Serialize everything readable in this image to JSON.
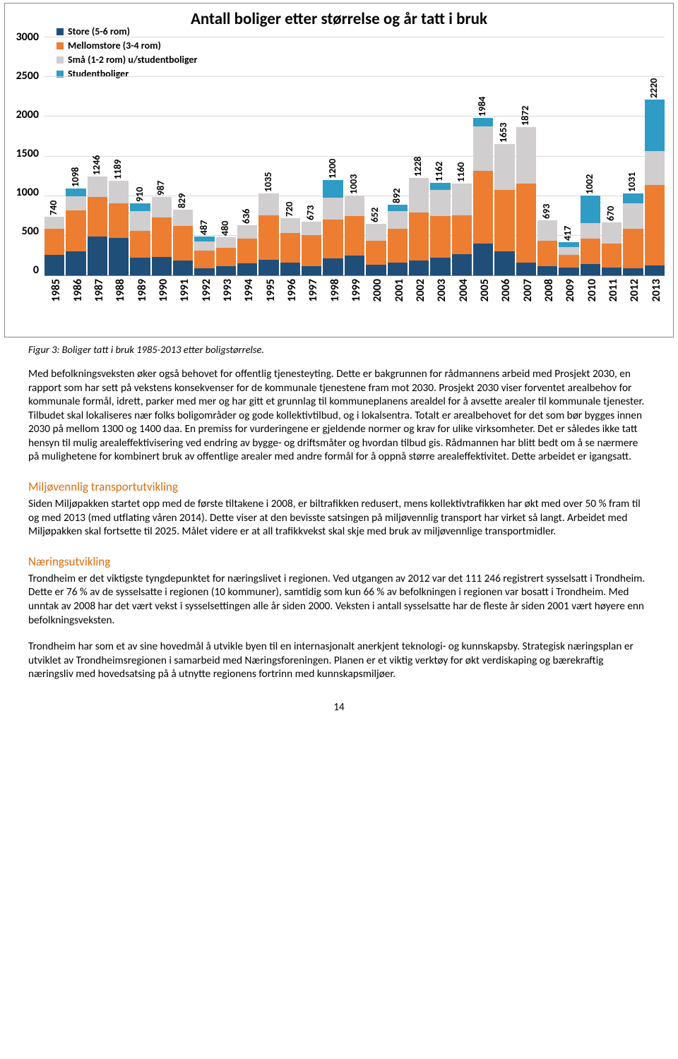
{
  "chart": {
    "title": "Antall boliger etter størrelse og år tatt i bruk",
    "type": "stacked-bar",
    "ymax": 3000,
    "ytick_step": 500,
    "yticks": [
      "3000",
      "2500",
      "2000",
      "1500",
      "1000",
      "500",
      "0"
    ],
    "series": [
      {
        "key": "store",
        "label": "Store (5-6 rom)",
        "color": "#1f4e79"
      },
      {
        "key": "mellom",
        "label": "Mellomstore (3-4 rom)",
        "color": "#ed7d31"
      },
      {
        "key": "sma",
        "label": "Små (1-2 rom) u/studentboliger",
        "color": "#d0cece"
      },
      {
        "key": "student",
        "label": "Studentboliger",
        "color": "#2e9cc4"
      }
    ],
    "years": [
      "1985",
      "1986",
      "1987",
      "1988",
      "1989",
      "1990",
      "1991",
      "1992",
      "1993",
      "1994",
      "1995",
      "1996",
      "1997",
      "1998",
      "1999",
      "2000",
      "2001",
      "2002",
      "2003",
      "2004",
      "2005",
      "2006",
      "2007",
      "2008",
      "2009",
      "2010",
      "2011",
      "2012",
      "2013"
    ],
    "totals": [
      740,
      1098,
      1246,
      1189,
      910,
      987,
      829,
      487,
      480,
      636,
      1035,
      720,
      673,
      1200,
      1003,
      652,
      892,
      1228,
      1162,
      1160,
      1984,
      1653,
      1872,
      693,
      417,
      1002,
      670,
      1031,
      2220
    ],
    "stacks": [
      {
        "store": 260,
        "mellom": 330,
        "sma": 150,
        "student": 0
      },
      {
        "store": 300,
        "mellom": 520,
        "sma": 180,
        "student": 98
      },
      {
        "store": 490,
        "mellom": 500,
        "sma": 256,
        "student": 0
      },
      {
        "store": 470,
        "mellom": 440,
        "sma": 279,
        "student": 0
      },
      {
        "store": 220,
        "mellom": 340,
        "sma": 250,
        "student": 100
      },
      {
        "store": 230,
        "mellom": 500,
        "sma": 257,
        "student": 0
      },
      {
        "store": 190,
        "mellom": 430,
        "sma": 209,
        "student": 0
      },
      {
        "store": 85,
        "mellom": 230,
        "sma": 110,
        "student": 62
      },
      {
        "store": 120,
        "mellom": 230,
        "sma": 130,
        "student": 0
      },
      {
        "store": 150,
        "mellom": 310,
        "sma": 176,
        "student": 0
      },
      {
        "store": 200,
        "mellom": 560,
        "sma": 275,
        "student": 0
      },
      {
        "store": 160,
        "mellom": 370,
        "sma": 190,
        "student": 0
      },
      {
        "store": 120,
        "mellom": 390,
        "sma": 163,
        "student": 0
      },
      {
        "store": 210,
        "mellom": 490,
        "sma": 280,
        "student": 220
      },
      {
        "store": 250,
        "mellom": 500,
        "sma": 253,
        "student": 0
      },
      {
        "store": 130,
        "mellom": 310,
        "sma": 212,
        "student": 0
      },
      {
        "store": 160,
        "mellom": 430,
        "sma": 220,
        "student": 82
      },
      {
        "store": 190,
        "mellom": 600,
        "sma": 438,
        "student": 0
      },
      {
        "store": 220,
        "mellom": 530,
        "sma": 330,
        "student": 82
      },
      {
        "store": 270,
        "mellom": 490,
        "sma": 400,
        "student": 0
      },
      {
        "store": 400,
        "mellom": 920,
        "sma": 560,
        "student": 104
      },
      {
        "store": 300,
        "mellom": 780,
        "sma": 573,
        "student": 0
      },
      {
        "store": 160,
        "mellom": 1000,
        "sma": 712,
        "student": 0
      },
      {
        "store": 120,
        "mellom": 320,
        "sma": 253,
        "student": 0
      },
      {
        "store": 100,
        "mellom": 160,
        "sma": 100,
        "student": 57
      },
      {
        "store": 140,
        "mellom": 320,
        "sma": 200,
        "student": 342
      },
      {
        "store": 100,
        "mellom": 300,
        "sma": 270,
        "student": 0
      },
      {
        "store": 90,
        "mellom": 500,
        "sma": 320,
        "student": 121
      },
      {
        "store": 120,
        "mellom": 1020,
        "sma": 430,
        "student": 650
      }
    ],
    "grid_color": "#d9d9d9",
    "axis_color": "#7f7f7f",
    "label_fontsize": 16
  },
  "caption": "Figur 3: Boliger tatt i bruk 1985-2013 etter boligstørrelse.",
  "para1": "Med befolkningsveksten øker også behovet for offentlig tjenesteyting. Dette er bakgrunnen for rådmannens arbeid med Prosjekt 2030, en rapport som har sett på vekstens konsekvenser for de kommunale tjenestene fram mot 2030. Prosjekt 2030 viser forventet arealbehov for kommunale formål, idrett, parker med mer og har gitt et grunnlag til kommuneplanens arealdel for å avsette arealer til kommunale tjenester. Tilbudet skal lokaliseres nær folks boligområder og gode kollektivtilbud, og i lokalsentra. Totalt er arealbehovet for det som bør bygges innen 2030 på mellom 1300 og 1400 daa. En premiss for vurderingene er gjeldende normer og krav for ulike virksomheter. Det er således ikke tatt hensyn til mulig arealeffektivisering ved endring av bygge- og driftsmåter og hvordan tilbud gis. Rådmannen har blitt bedt om å se nærmere på mulighetene for kombinert bruk av offentlige arealer med andre formål for å oppnå større arealeffektivitet. Dette arbeidet er igangsatt.",
  "heading1": "Miljøvennlig transportutvikling",
  "para2": "Siden Miljøpakken startet opp med de første tiltakene i 2008, er biltrafikken redusert, mens kollektivtrafikken har økt med over 50 % fram til og med 2013 (med utflating våren 2014). Dette viser at den bevisste satsingen på miljøvennlig transport har virket så langt. Arbeidet med Miljøpakken skal fortsette til 2025. Målet videre er at all trafikkvekst skal skje med bruk av miljøvennlige transportmidler.",
  "heading2": "Næringsutvikling",
  "para3": "Trondheim er det viktigste tyngdepunktet for næringslivet i regionen. Ved utgangen av 2012 var det 111 246 registrert sysselsatt i Trondheim. Dette er 76 % av de sysselsatte i regionen (10 kommuner), samtidig som kun 66 % av befolkningen i regionen var bosatt i Trondheim. Med unntak av 2008 har det vært vekst i sysselsettingen alle år siden 2000. Veksten i antall sysselsatte har de fleste år siden 2001 vært høyere enn befolkningsveksten.",
  "para4": "Trondheim har som et av sine hovedmål å utvikle byen til en internasjonalt anerkjent teknologi- og kunnskapsby. Strategisk næringsplan er utviklet av Trondheimsregionen i samarbeid med Næringsforeningen. Planen er et viktig verktøy for økt verdiskaping og bærekraftig næringsliv med hovedsatsing på å utnytte regionens fortrinn med kunnskapsmiljøer.",
  "page_number": "14"
}
